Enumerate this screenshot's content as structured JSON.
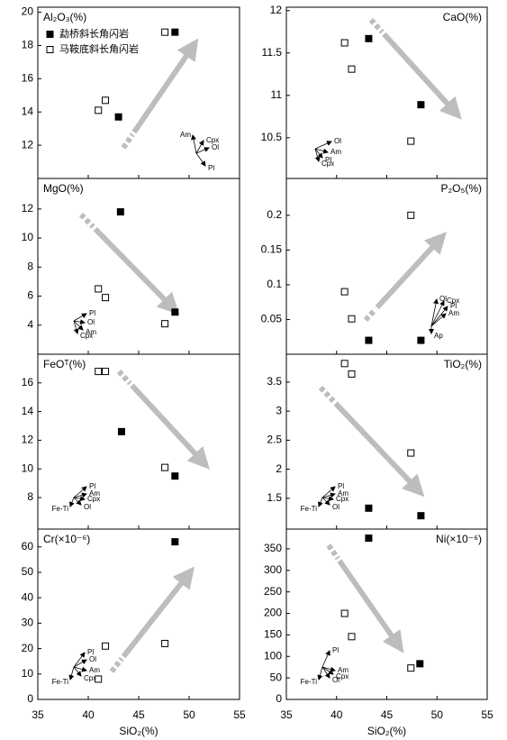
{
  "chart_data": [
    {
      "type": "scatter",
      "title": "Al₂O₃(%)",
      "xlim": [
        35,
        55
      ],
      "xticks": [
        35,
        40,
        45,
        50,
        55
      ],
      "ylim": [
        10,
        20.3
      ],
      "yticks": [
        12,
        14,
        16,
        18,
        20
      ],
      "legend": "upper left",
      "series": [
        {
          "name": "勐桥斜长角闪岩",
          "color": "#000000",
          "filled": true,
          "x": [
            48.6,
            43.0
          ],
          "values": [
            18.8,
            13.7
          ]
        },
        {
          "name": "马鞍底斜长角闪岩",
          "color": "#000000",
          "filled": false,
          "x": [
            47.6,
            41.7,
            41.0
          ],
          "values": [
            18.8,
            14.7,
            14.1
          ]
        }
      ],
      "vectors": [
        "Am",
        "Cpx",
        "Ol",
        "Pl"
      ]
    },
    {
      "type": "scatter",
      "title": "CaO(%)",
      "xlim": [
        35,
        55
      ],
      "xticks": [
        35,
        40,
        45,
        50,
        55
      ],
      "ylim": [
        10.02,
        12.04
      ],
      "yticks": [
        10.5,
        11,
        11.5,
        12
      ],
      "series": [
        {
          "name": "勐桥斜长角闪岩",
          "color": "#000000",
          "filled": true,
          "x": [
            43.2,
            48.4
          ],
          "values": [
            11.67,
            10.89
          ]
        },
        {
          "name": "马鞍底斜长角闪岩",
          "color": "#000000",
          "filled": false,
          "x": [
            40.8,
            41.5,
            47.4
          ],
          "values": [
            11.62,
            11.31,
            10.46
          ]
        }
      ],
      "vectors": [
        "Ol",
        "Am",
        "Pl",
        "Cpx"
      ]
    },
    {
      "type": "scatter",
      "title": "MgO(%)",
      "xlim": [
        35,
        55
      ],
      "xticks": [
        35,
        40,
        45,
        50,
        55
      ],
      "ylim": [
        2,
        14.1
      ],
      "yticks": [
        4,
        6,
        8,
        10,
        12
      ],
      "series": [
        {
          "name": "勐桥斜长角闪岩",
          "color": "#000000",
          "filled": true,
          "x": [
            43.2,
            48.6
          ],
          "values": [
            11.8,
            4.9
          ]
        },
        {
          "name": "马鞍底斜长角闪岩",
          "color": "#000000",
          "filled": false,
          "x": [
            41.0,
            41.7,
            47.6
          ],
          "values": [
            6.5,
            5.9,
            4.1
          ]
        }
      ],
      "vectors": [
        "Pl",
        "Ol",
        "Am",
        "Cpx"
      ]
    },
    {
      "type": "scatter",
      "title": "P₂O₅(%)",
      "xlim": [
        35,
        55
      ],
      "xticks": [
        35,
        40,
        45,
        50,
        55
      ],
      "ylim": [
        0,
        0.253
      ],
      "yticks": [
        0.05,
        0.1,
        0.15,
        0.2
      ],
      "series": [
        {
          "name": "勐桥斜长角闪岩",
          "color": "#000000",
          "filled": true,
          "x": [
            43.2,
            48.4
          ],
          "values": [
            0.02,
            0.02
          ]
        },
        {
          "name": "马鞍底斜长角闪岩",
          "color": "#000000",
          "filled": false,
          "x": [
            40.8,
            41.5,
            47.4
          ],
          "values": [
            0.09,
            0.051,
            0.2
          ]
        }
      ],
      "vectors": [
        "Ol",
        "Cpx",
        "Pl",
        "Am",
        "Ap"
      ]
    },
    {
      "type": "scatter",
      "title": "FeOᵀ(%)",
      "xlim": [
        35,
        55
      ],
      "xticks": [
        35,
        40,
        45,
        50,
        55
      ],
      "ylim": [
        5.8,
        18
      ],
      "yticks": [
        8,
        10,
        12,
        14,
        16
      ],
      "series": [
        {
          "name": "勐桥斜长角闪岩",
          "color": "#000000",
          "filled": true,
          "x": [
            43.3,
            48.6
          ],
          "values": [
            12.6,
            9.5
          ]
        },
        {
          "name": "马鞍底斜长角闪岩",
          "color": "#000000",
          "filled": false,
          "x": [
            41.0,
            41.7,
            47.6
          ],
          "values": [
            16.8,
            16.8,
            10.1
          ]
        }
      ],
      "vectors": [
        "Pl",
        "Am",
        "Cpx",
        "Ol",
        "Fe-Ti"
      ]
    },
    {
      "type": "scatter",
      "title": "TiO₂(%)",
      "xlim": [
        35,
        55
      ],
      "xticks": [
        35,
        40,
        45,
        50,
        55
      ],
      "ylim": [
        0.97,
        3.98
      ],
      "yticks": [
        1.5,
        2,
        2.5,
        3,
        3.5
      ],
      "series": [
        {
          "name": "勐桥斜长角闪岩",
          "color": "#000000",
          "filled": true,
          "x": [
            43.2,
            48.4
          ],
          "values": [
            1.33,
            1.2
          ]
        },
        {
          "name": "马鞍底斜长角闪岩",
          "color": "#000000",
          "filled": false,
          "x": [
            40.8,
            41.5,
            47.4
          ],
          "values": [
            3.82,
            3.64,
            2.28
          ]
        }
      ],
      "vectors": [
        "Pl",
        "Am",
        "Cpx",
        "Ol",
        "Fe-Ti"
      ]
    },
    {
      "type": "scatter",
      "title": "Cr(×10⁻⁶)",
      "x_label": "SiO₂(%)",
      "xlim": [
        35,
        55
      ],
      "xticks": [
        35,
        40,
        45,
        50,
        55
      ],
      "ylim": [
        0,
        67
      ],
      "yticks": [
        0,
        10,
        20,
        30,
        40,
        50,
        60
      ],
      "series": [
        {
          "name": "勐桥斜长角闪岩",
          "color": "#000000",
          "filled": true,
          "x": [
            48.6
          ],
          "values": [
            62
          ]
        },
        {
          "name": "马鞍底斜长角闪岩",
          "color": "#000000",
          "filled": false,
          "x": [
            41.7,
            41.0,
            47.6
          ],
          "values": [
            21,
            8,
            22
          ]
        }
      ],
      "vectors": [
        "Pl",
        "Ol",
        "Am",
        "Cpx",
        "Fe-Ti"
      ]
    },
    {
      "type": "scatter",
      "title": "Ni(×10⁻⁶)",
      "x_label": "SiO₂(%)",
      "xlim": [
        35,
        55
      ],
      "xticks": [
        35,
        40,
        45,
        50,
        55
      ],
      "ylim": [
        0,
        396
      ],
      "yticks": [
        0,
        50,
        100,
        150,
        200,
        250,
        300,
        350
      ],
      "series": [
        {
          "name": "勐桥斜长角闪岩",
          "color": "#000000",
          "filled": true,
          "x": [
            43.2,
            48.3
          ],
          "values": [
            375,
            83
          ]
        },
        {
          "name": "马鞍底斜长角闪岩",
          "color": "#000000",
          "filled": false,
          "x": [
            40.8,
            41.5,
            47.4
          ],
          "values": [
            200,
            146,
            73
          ]
        }
      ],
      "vectors": [
        "Pl",
        "Am",
        "Cpx",
        "Ol",
        "Fe-Ti"
      ]
    }
  ]
}
